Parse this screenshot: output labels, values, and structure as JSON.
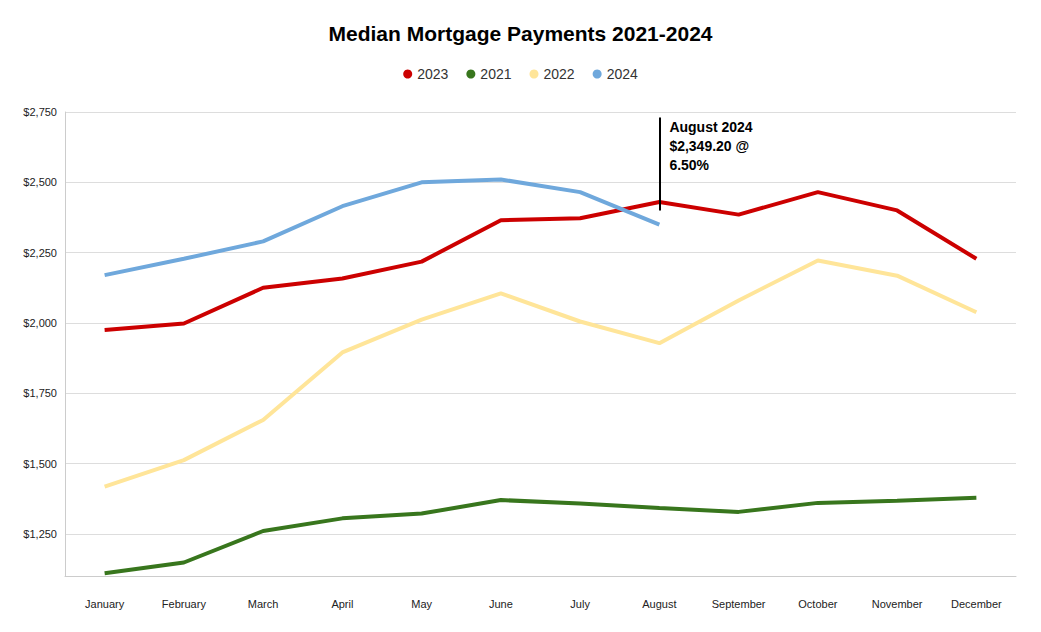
{
  "chart_data": {
    "type": "line",
    "title": "Median Mortgage Payments 2021-2024",
    "categories": [
      "January",
      "February",
      "March",
      "April",
      "May",
      "June",
      "July",
      "August",
      "September",
      "October",
      "November",
      "December"
    ],
    "series": [
      {
        "name": "2023",
        "color": "#cc0000",
        "values": [
          1975,
          1998,
          2125,
          2158,
          2218,
          2365,
          2372,
          2430,
          2385,
          2465,
          2400,
          2228
        ]
      },
      {
        "name": "2021",
        "color": "#38761d",
        "values": [
          1110,
          1148,
          1260,
          1305,
          1322,
          1370,
          1358,
          1342,
          1328,
          1360,
          1368,
          1378
        ]
      },
      {
        "name": "2022",
        "color": "#ffe599",
        "values": [
          1418,
          1512,
          1655,
          1895,
          2012,
          2105,
          2005,
          1928,
          2080,
          2222,
          2168,
          2038
        ]
      },
      {
        "name": "2024",
        "color": "#6fa8dc",
        "values": [
          2170,
          2228,
          2290,
          2415,
          2500,
          2510,
          2465,
          2349.2,
          null,
          null,
          null,
          null
        ]
      }
    ],
    "ylim": [
      1100,
      2750
    ],
    "yticks": [
      {
        "value": 1250,
        "label": "$1,250"
      },
      {
        "value": 1500,
        "label": "$1,500"
      },
      {
        "value": 1750,
        "label": "$1,750"
      },
      {
        "value": 2000,
        "label": "$2,000"
      },
      {
        "value": 2250,
        "label": "$2,250"
      },
      {
        "value": 2500,
        "label": "$2,500"
      },
      {
        "value": 2750,
        "label": "$2,750"
      }
    ],
    "grid": true,
    "legend": "top",
    "annotation": {
      "text": [
        "August 2024",
        "$2,349.20 @",
        "6.50%"
      ],
      "x": "August",
      "y_from": 2400,
      "y_to": 2730
    }
  }
}
